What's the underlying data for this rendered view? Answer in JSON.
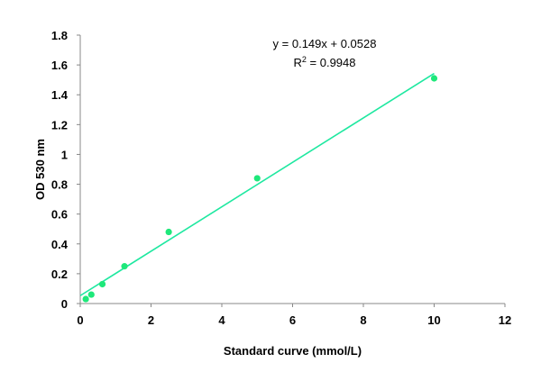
{
  "chart_data": {
    "type": "scatter",
    "xlabel": "Standard curve (mmol/L)",
    "ylabel": "OD 530 nm",
    "xlim": [
      0,
      12
    ],
    "ylim": [
      0,
      1.8
    ],
    "x_ticks": [
      "0",
      "2",
      "4",
      "6",
      "8",
      "10",
      "12"
    ],
    "y_ticks": [
      "0",
      "0.2",
      "0.4",
      "0.6",
      "0.8",
      "1",
      "1.2",
      "1.4",
      "1.6",
      "1.8"
    ],
    "grid": false,
    "legend": "none",
    "series": [
      {
        "x": [
          0.156,
          0.3125,
          0.625,
          1.25,
          2.5,
          5,
          10
        ],
        "y": [
          0.03,
          0.06,
          0.13,
          0.25,
          0.48,
          0.84,
          1.51
        ],
        "color": "#1ee87a"
      }
    ],
    "trendline": {
      "slope": 0.149,
      "intercept": 0.0528,
      "x_range": [
        0,
        10
      ],
      "color": "#1ee8a0",
      "equation_label": "y = 0.149x + 0.0528",
      "r2_label_prefix": "R",
      "r2_label_sup": "2",
      "r2_label_value": " = 0.9948"
    }
  }
}
